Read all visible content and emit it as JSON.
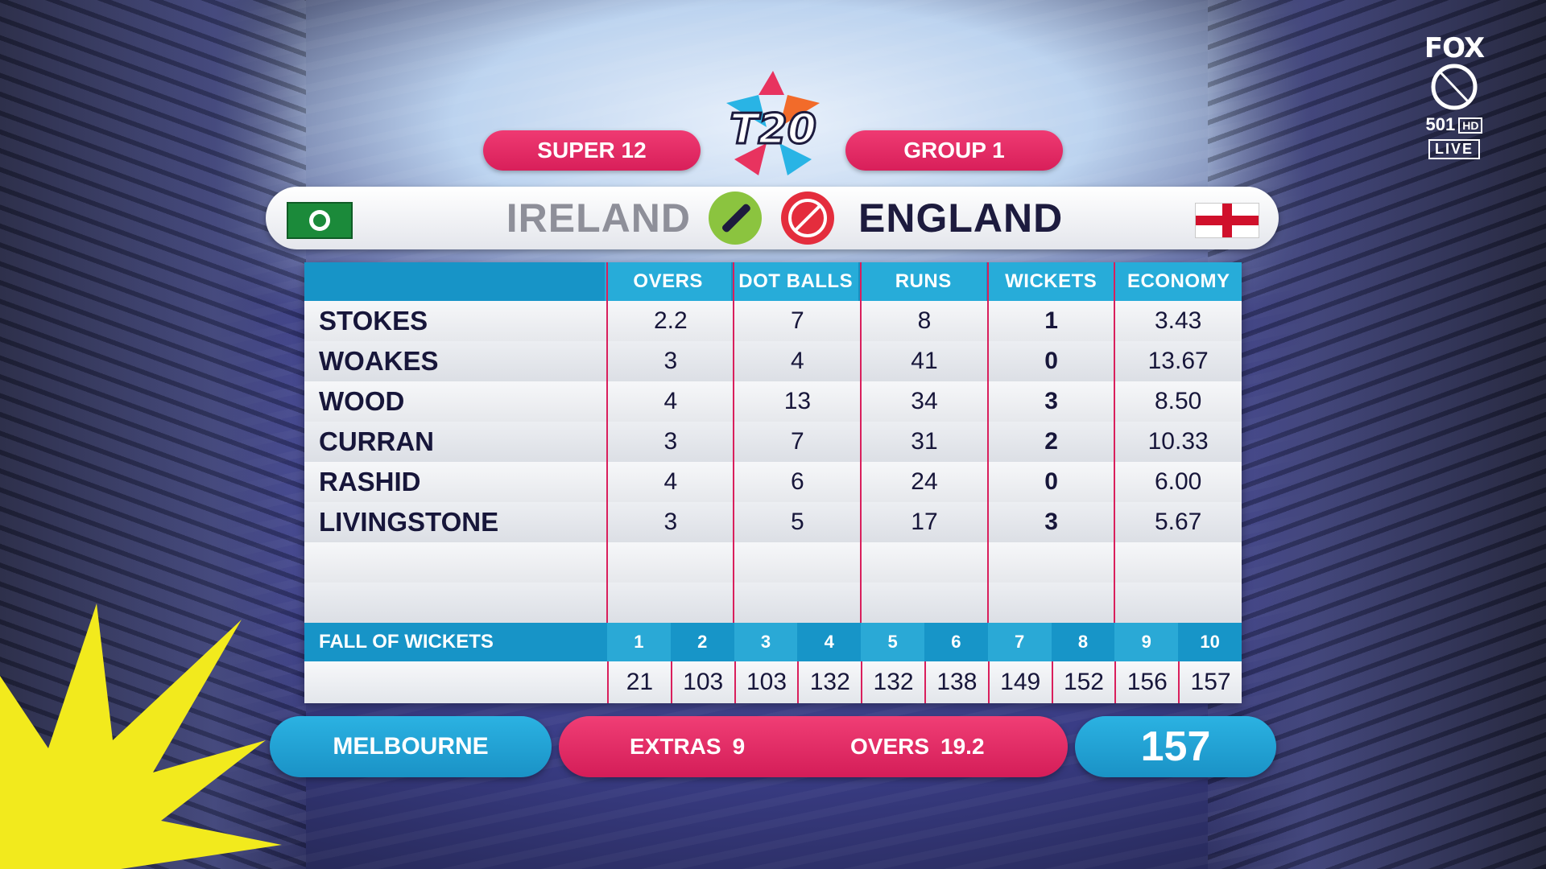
{
  "header": {
    "stage": "SUPER 12",
    "group": "GROUP 1",
    "logo_text": "T20"
  },
  "broadcaster": {
    "brand": "FOX",
    "channel": "501",
    "quality": "HD",
    "live": "LIVE"
  },
  "teams": {
    "batting": "IRELAND",
    "bowling": "ENGLAND"
  },
  "table": {
    "columns": [
      "OVERS",
      "DOT BALLS",
      "RUNS",
      "WICKETS",
      "ECONOMY"
    ],
    "rows": [
      {
        "name": "STOKES",
        "overs": "2.2",
        "dots": "7",
        "runs": "8",
        "wickets": "1",
        "economy": "3.43"
      },
      {
        "name": "WOAKES",
        "overs": "3",
        "dots": "4",
        "runs": "41",
        "wickets": "0",
        "economy": "13.67"
      },
      {
        "name": "WOOD",
        "overs": "4",
        "dots": "13",
        "runs": "34",
        "wickets": "3",
        "economy": "8.50"
      },
      {
        "name": "CURRAN",
        "overs": "3",
        "dots": "7",
        "runs": "31",
        "wickets": "2",
        "economy": "10.33"
      },
      {
        "name": "RASHID",
        "overs": "4",
        "dots": "6",
        "runs": "24",
        "wickets": "0",
        "economy": "6.00"
      },
      {
        "name": "LIVINGSTONE",
        "overs": "3",
        "dots": "5",
        "runs": "17",
        "wickets": "3",
        "economy": "5.67"
      }
    ]
  },
  "fall_of_wickets": {
    "title": "FALL OF WICKETS",
    "numbers": [
      "1",
      "2",
      "3",
      "4",
      "5",
      "6",
      "7",
      "8",
      "9",
      "10"
    ],
    "scores": [
      "21",
      "103",
      "103",
      "132",
      "132",
      "138",
      "149",
      "152",
      "156",
      "157"
    ]
  },
  "footer": {
    "venue": "MELBOURNE",
    "extras_label": "EXTRAS",
    "extras_value": "9",
    "overs_label": "OVERS",
    "overs_value": "19.2",
    "total": "157"
  },
  "colors": {
    "accent_pink": "#d81f5a",
    "accent_blue": "#1a9fd2",
    "text_dark": "#17163a"
  }
}
